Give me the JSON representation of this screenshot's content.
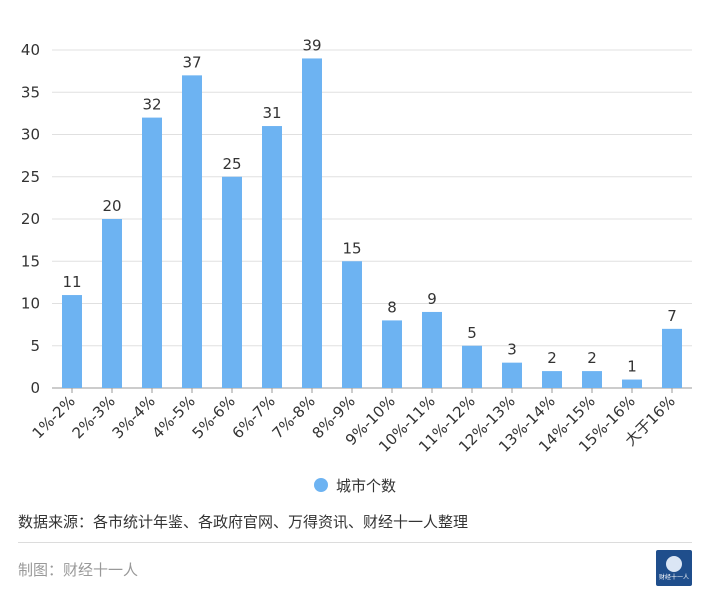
{
  "chart_data": {
    "type": "bar",
    "categories": [
      "1%-2%",
      "2%-3%",
      "3%-4%",
      "4%-5%",
      "5%-6%",
      "6%-7%",
      "7%-8%",
      "8%-9%",
      "9%-10%",
      "10%-11%",
      "11%-12%",
      "12%-13%",
      "13%-14%",
      "14%-15%",
      "15%-16%",
      "大于16%"
    ],
    "series": [
      {
        "name": "城市个数",
        "values": [
          11,
          20,
          32,
          37,
          25,
          31,
          39,
          15,
          8,
          9,
          5,
          3,
          2,
          2,
          1,
          7
        ]
      }
    ],
    "yticks": [
      0,
      5,
      10,
      15,
      20,
      25,
      30,
      35,
      40
    ],
    "ylim": [
      0,
      40
    ],
    "grid": true,
    "legend_position": "bottom-center",
    "bar_color": "#6db3f2",
    "grid_color": "#e0e0e0",
    "axis_color": "#999999"
  },
  "footer": {
    "source": "数据来源：各市统计年鉴、各政府官网、万得资讯、财经十一人整理",
    "credit": "制图：财经十一人",
    "logo_text": "财经十一人"
  }
}
